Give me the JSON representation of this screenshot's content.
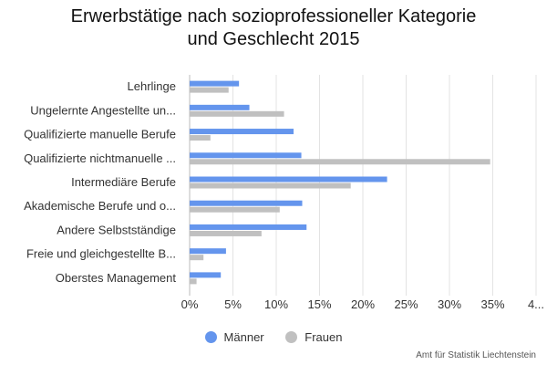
{
  "chart_data": {
    "type": "bar",
    "orientation": "horizontal",
    "title_lines": [
      "Erwerbstätige nach sozioprofessioneller Kategorie",
      "und Geschlecht 2015"
    ],
    "categories": [
      "Lehrlinge",
      "Ungelernte Angestellte un...",
      "Qualifizierte manuelle Berufe",
      "Qualifizierte nichtmanuelle ...",
      "Intermediäre Berufe",
      "Akademische Berufe und o...",
      "Andere Selbstständige",
      "Freie und gleichgestellte B...",
      "Oberstes Management"
    ],
    "series": [
      {
        "name": "Männer",
        "color": "#6495ed",
        "values": [
          5.7,
          6.9,
          12.0,
          12.9,
          22.8,
          13.0,
          13.5,
          4.2,
          3.6
        ]
      },
      {
        "name": "Frauen",
        "color": "#c0c0c0",
        "values": [
          4.5,
          10.9,
          2.4,
          34.7,
          18.6,
          10.4,
          8.3,
          1.6,
          0.8
        ]
      }
    ],
    "x_ticks": [
      "0%",
      "5%",
      "10%",
      "15%",
      "20%",
      "25%",
      "30%",
      "35%",
      "4..."
    ],
    "xlim": [
      0,
      40
    ],
    "grid": true,
    "legend_position": "bottom"
  },
  "source": "Amt für Statistik Liechtenstein"
}
